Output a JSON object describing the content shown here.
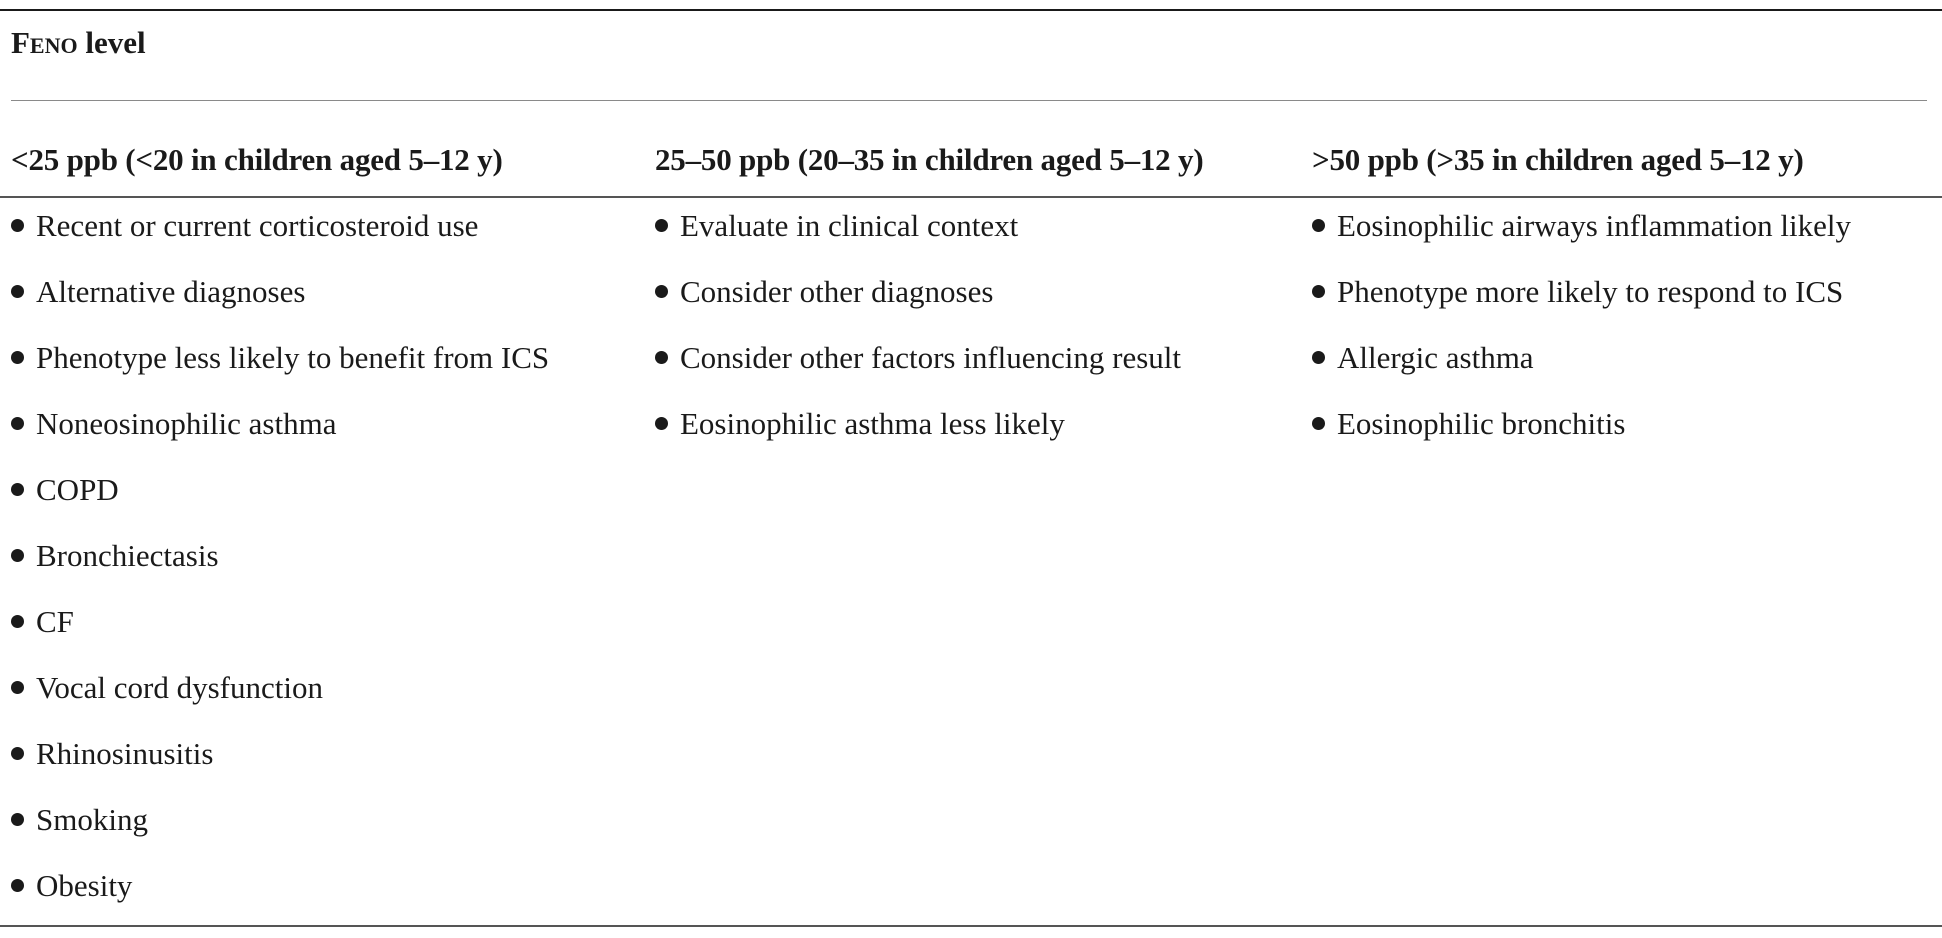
{
  "table": {
    "title_prefix": "Feno",
    "title_suffix": " level",
    "columns": [
      {
        "header": "<25 ppb (<20 in children aged 5–12 y)",
        "items": [
          "Recent or current corticosteroid use",
          "Alternative diagnoses",
          "Phenotype less likely to benefit from ICS",
          "Noneosinophilic asthma",
          "COPD",
          "Bronchiectasis",
          "CF",
          "Vocal cord dysfunction",
          "Rhinosinusitis",
          "Smoking",
          "Obesity"
        ]
      },
      {
        "header": "25–50 ppb (20–35 in children aged 5–12 y)",
        "items": [
          "Evaluate in clinical context",
          "Consider other diagnoses",
          "Consider other factors influencing result",
          "Eosinophilic asthma less likely"
        ]
      },
      {
        "header": ">50 ppb (>35 in children aged 5–12 y)",
        "items": [
          "Eosinophilic airways inflammation likely",
          "Phenotype more likely to respond to ICS",
          "Allergic asthma",
          "Eosinophilic bronchitis"
        ]
      }
    ]
  }
}
